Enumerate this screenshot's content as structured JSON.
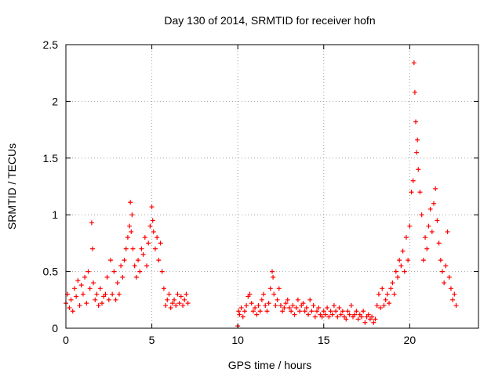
{
  "chart_data": {
    "type": "scatter",
    "title": "Day 130 of 2014, SRMTID for receiver hofn",
    "xlabel": "GPS time / hours",
    "ylabel": "SRMTID / TECUs",
    "xlim": [
      0,
      24
    ],
    "ylim": [
      0,
      2.5
    ],
    "xticks": [
      0,
      5,
      10,
      15,
      20
    ],
    "xtick_labels": [
      "0",
      "5",
      "10",
      "15",
      "20"
    ],
    "yticks": [
      0,
      0.5,
      1,
      1.5,
      2,
      2.5
    ],
    "ytick_labels": [
      "0",
      "0.5",
      "1",
      "1.5",
      "2",
      "2.5"
    ],
    "grid": true,
    "marker": "+",
    "series": [
      {
        "name": "SRMTID",
        "color": "#ff0000",
        "x": [
          0.0,
          0.1,
          0.2,
          0.3,
          0.4,
          0.5,
          0.6,
          0.7,
          0.8,
          0.9,
          1.0,
          1.1,
          1.2,
          1.3,
          1.4,
          1.5,
          1.55,
          1.6,
          1.7,
          1.8,
          1.9,
          2.0,
          2.1,
          2.2,
          2.3,
          2.4,
          2.5,
          2.6,
          2.7,
          2.8,
          2.9,
          3.0,
          3.1,
          3.2,
          3.3,
          3.4,
          3.5,
          3.6,
          3.7,
          3.75,
          3.8,
          3.85,
          3.9,
          4.0,
          4.1,
          4.2,
          4.3,
          4.4,
          4.5,
          4.6,
          4.7,
          4.8,
          4.9,
          5.0,
          5.05,
          5.1,
          5.2,
          5.3,
          5.4,
          5.5,
          5.6,
          5.7,
          5.8,
          5.9,
          6.0,
          6.1,
          6.2,
          6.3,
          6.4,
          6.5,
          6.6,
          6.7,
          6.8,
          6.9,
          7.0,
          7.1,
          10.0,
          10.05,
          10.1,
          10.2,
          10.3,
          10.4,
          10.5,
          10.6,
          10.7,
          10.8,
          10.9,
          11.0,
          11.1,
          11.2,
          11.3,
          11.4,
          11.5,
          11.6,
          11.7,
          11.8,
          11.9,
          12.0,
          12.05,
          12.1,
          12.2,
          12.3,
          12.4,
          12.5,
          12.6,
          12.7,
          12.8,
          12.9,
          13.0,
          13.1,
          13.2,
          13.3,
          13.4,
          13.5,
          13.6,
          13.7,
          13.8,
          13.9,
          14.0,
          14.1,
          14.2,
          14.3,
          14.4,
          14.5,
          14.6,
          14.7,
          14.8,
          14.9,
          15.0,
          15.1,
          15.2,
          15.3,
          15.4,
          15.5,
          15.6,
          15.7,
          15.8,
          15.9,
          16.0,
          16.1,
          16.2,
          16.3,
          16.4,
          16.5,
          16.6,
          16.7,
          16.8,
          16.9,
          17.0,
          17.1,
          17.2,
          17.3,
          17.4,
          17.5,
          17.6,
          17.7,
          17.8,
          17.9,
          18.0,
          18.1,
          18.2,
          18.3,
          18.4,
          18.5,
          18.6,
          18.7,
          18.8,
          18.9,
          19.0,
          19.1,
          19.2,
          19.3,
          19.4,
          19.5,
          19.6,
          19.7,
          19.8,
          19.9,
          20.0,
          20.1,
          20.2,
          20.25,
          20.3,
          20.35,
          20.4,
          20.45,
          20.5,
          20.6,
          20.7,
          20.8,
          20.9,
          21.0,
          21.1,
          21.2,
          21.3,
          21.4,
          21.5,
          21.6,
          21.7,
          21.8,
          21.9,
          22.0,
          22.1,
          22.2,
          22.3,
          22.4,
          22.5,
          22.6,
          22.7
        ],
        "y": [
          0.22,
          0.3,
          0.18,
          0.25,
          0.15,
          0.35,
          0.28,
          0.42,
          0.2,
          0.38,
          0.3,
          0.45,
          0.22,
          0.5,
          0.35,
          0.93,
          0.7,
          0.4,
          0.25,
          0.3,
          0.2,
          0.35,
          0.22,
          0.28,
          0.3,
          0.45,
          0.25,
          0.6,
          0.3,
          0.5,
          0.25,
          0.4,
          0.3,
          0.55,
          0.45,
          0.6,
          0.7,
          0.8,
          0.9,
          1.11,
          0.85,
          1.0,
          0.7,
          0.55,
          0.45,
          0.6,
          0.5,
          0.7,
          0.65,
          0.8,
          0.55,
          0.75,
          0.9,
          1.07,
          0.95,
          0.85,
          0.7,
          0.8,
          0.6,
          0.75,
          0.5,
          0.35,
          0.2,
          0.25,
          0.3,
          0.18,
          0.22,
          0.25,
          0.2,
          0.3,
          0.22,
          0.28,
          0.2,
          0.25,
          0.3,
          0.22,
          0.02,
          0.15,
          0.12,
          0.18,
          0.1,
          0.15,
          0.2,
          0.28,
          0.3,
          0.22,
          0.15,
          0.18,
          0.12,
          0.2,
          0.15,
          0.25,
          0.3,
          0.2,
          0.15,
          0.22,
          0.35,
          0.5,
          0.45,
          0.3,
          0.2,
          0.25,
          0.35,
          0.2,
          0.15,
          0.18,
          0.22,
          0.25,
          0.18,
          0.15,
          0.2,
          0.12,
          0.18,
          0.25,
          0.15,
          0.2,
          0.22,
          0.15,
          0.18,
          0.12,
          0.25,
          0.15,
          0.2,
          0.1,
          0.15,
          0.18,
          0.12,
          0.1,
          0.15,
          0.12,
          0.18,
          0.1,
          0.15,
          0.12,
          0.2,
          0.15,
          0.1,
          0.18,
          0.12,
          0.15,
          0.1,
          0.08,
          0.15,
          0.12,
          0.2,
          0.1,
          0.12,
          0.15,
          0.08,
          0.12,
          0.1,
          0.15,
          0.05,
          0.1,
          0.12,
          0.08,
          0.1,
          0.05,
          0.08,
          0.2,
          0.3,
          0.18,
          0.35,
          0.2,
          0.25,
          0.3,
          0.22,
          0.35,
          0.4,
          0.3,
          0.5,
          0.45,
          0.6,
          0.55,
          0.68,
          0.5,
          0.8,
          0.6,
          0.9,
          1.2,
          1.3,
          2.34,
          2.08,
          1.82,
          1.55,
          1.66,
          1.4,
          1.2,
          1.0,
          0.6,
          0.8,
          0.7,
          0.9,
          1.05,
          0.85,
          1.1,
          1.23,
          0.95,
          0.75,
          0.6,
          0.5,
          0.4,
          0.55,
          0.85,
          0.45,
          0.35,
          0.25,
          0.3,
          0.2
        ]
      }
    ]
  }
}
